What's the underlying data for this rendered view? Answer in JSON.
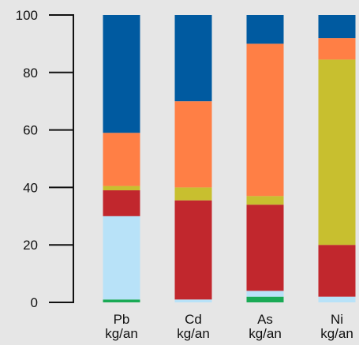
{
  "chart_data": {
    "type": "bar",
    "stacked": true,
    "ylim": [
      0,
      100
    ],
    "yticks": [
      0,
      20,
      40,
      60,
      80,
      100
    ],
    "grid": false,
    "categories": [
      {
        "label": "Pb",
        "unit": "kg/an"
      },
      {
        "label": "Cd",
        "unit": "kg/an"
      },
      {
        "label": "As",
        "unit": "kg/an"
      },
      {
        "label": "Ni",
        "unit": "kg/an"
      }
    ],
    "series": [
      {
        "color": "#1aaa55",
        "values": [
          1,
          0,
          2,
          0
        ]
      },
      {
        "color": "#b8e2f8",
        "values": [
          29,
          1,
          2,
          2
        ]
      },
      {
        "color": "#c1272d",
        "values": [
          9,
          34.5,
          30,
          18
        ]
      },
      {
        "color": "#c8bf2f",
        "values": [
          1.5,
          4.5,
          3,
          64.5
        ]
      },
      {
        "color": "#ff7f45",
        "values": [
          18.5,
          30,
          53,
          7.5
        ]
      },
      {
        "color": "#005aa0",
        "values": [
          41,
          30,
          10,
          8
        ]
      }
    ]
  }
}
